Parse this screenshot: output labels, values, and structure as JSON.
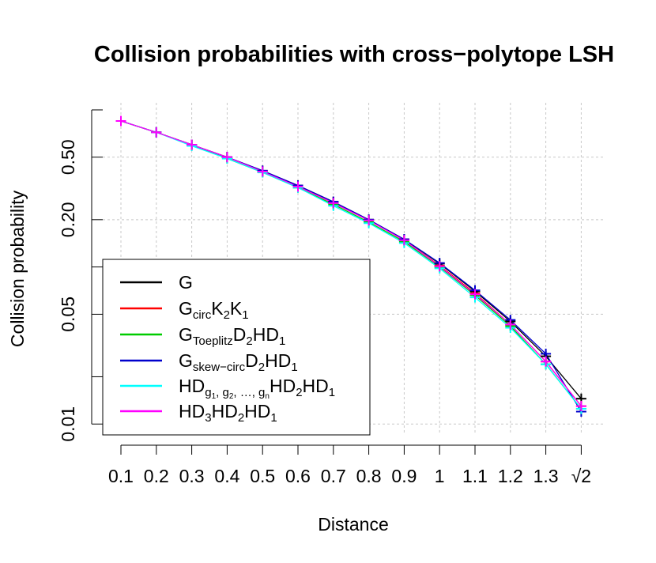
{
  "chart_data": {
    "type": "line",
    "title": "Collision probabilities with cross−polytope LSH",
    "xlabel": "Distance",
    "ylabel": "Collision probability",
    "y_scale": "log",
    "ylim": [
      0.009,
      1.0
    ],
    "grid": true,
    "legend_position": "bottom-left",
    "x": [
      0.1,
      0.2,
      0.3,
      0.4,
      0.5,
      0.6,
      0.7,
      0.8,
      0.9,
      1.0,
      1.1,
      1.2,
      1.3,
      1.4142
    ],
    "x_tick_labels": [
      "0.1",
      "0.2",
      "0.3",
      "0.4",
      "0.5",
      "0.6",
      "0.7",
      "0.8",
      "0.9",
      "1",
      "1.1",
      "1.2",
      "1.3",
      "√2"
    ],
    "y_ticks": [
      0.01,
      0.05,
      0.2,
      0.5
    ],
    "y_tick_labels": [
      "0.01",
      "0.05",
      "0.20",
      "0.50"
    ],
    "series": [
      {
        "name": "G",
        "color": "#000000",
        "values": [
          0.85,
          0.72,
          0.6,
          0.5,
          0.41,
          0.33,
          0.26,
          0.2,
          0.15,
          0.105,
          0.07,
          0.045,
          0.027,
          0.0145
        ]
      },
      {
        "name": "G_circ K_2 K_1",
        "color": "#ff0000",
        "values": [
          0.85,
          0.72,
          0.6,
          0.5,
          0.405,
          0.325,
          0.255,
          0.198,
          0.148,
          0.102,
          0.068,
          0.043,
          0.025,
          0.013
        ]
      },
      {
        "name": "G_Toeplitz D_2 H D_1",
        "color": "#00cc00",
        "values": [
          0.85,
          0.72,
          0.6,
          0.49,
          0.4,
          0.32,
          0.25,
          0.193,
          0.145,
          0.1,
          0.066,
          0.042,
          0.024,
          0.0125
        ]
      },
      {
        "name": "G_skew−circ D_2 H D_1",
        "color": "#0000cc",
        "values": [
          0.85,
          0.72,
          0.6,
          0.5,
          0.41,
          0.33,
          0.26,
          0.2,
          0.15,
          0.106,
          0.071,
          0.046,
          0.028,
          0.012
        ]
      },
      {
        "name": "HD_{g1, g2, ..., gn} H D_2 H D_1",
        "color": "#00ffff",
        "values": [
          0.85,
          0.72,
          0.59,
          0.49,
          0.4,
          0.32,
          0.245,
          0.19,
          0.142,
          0.098,
          0.064,
          0.041,
          0.024,
          0.0125
        ]
      },
      {
        "name": "HD_3 H D_2 H D_1",
        "color": "#ff00ff",
        "values": [
          0.85,
          0.72,
          0.6,
          0.5,
          0.405,
          0.325,
          0.255,
          0.198,
          0.148,
          0.101,
          0.067,
          0.043,
          0.025,
          0.013
        ]
      }
    ]
  }
}
